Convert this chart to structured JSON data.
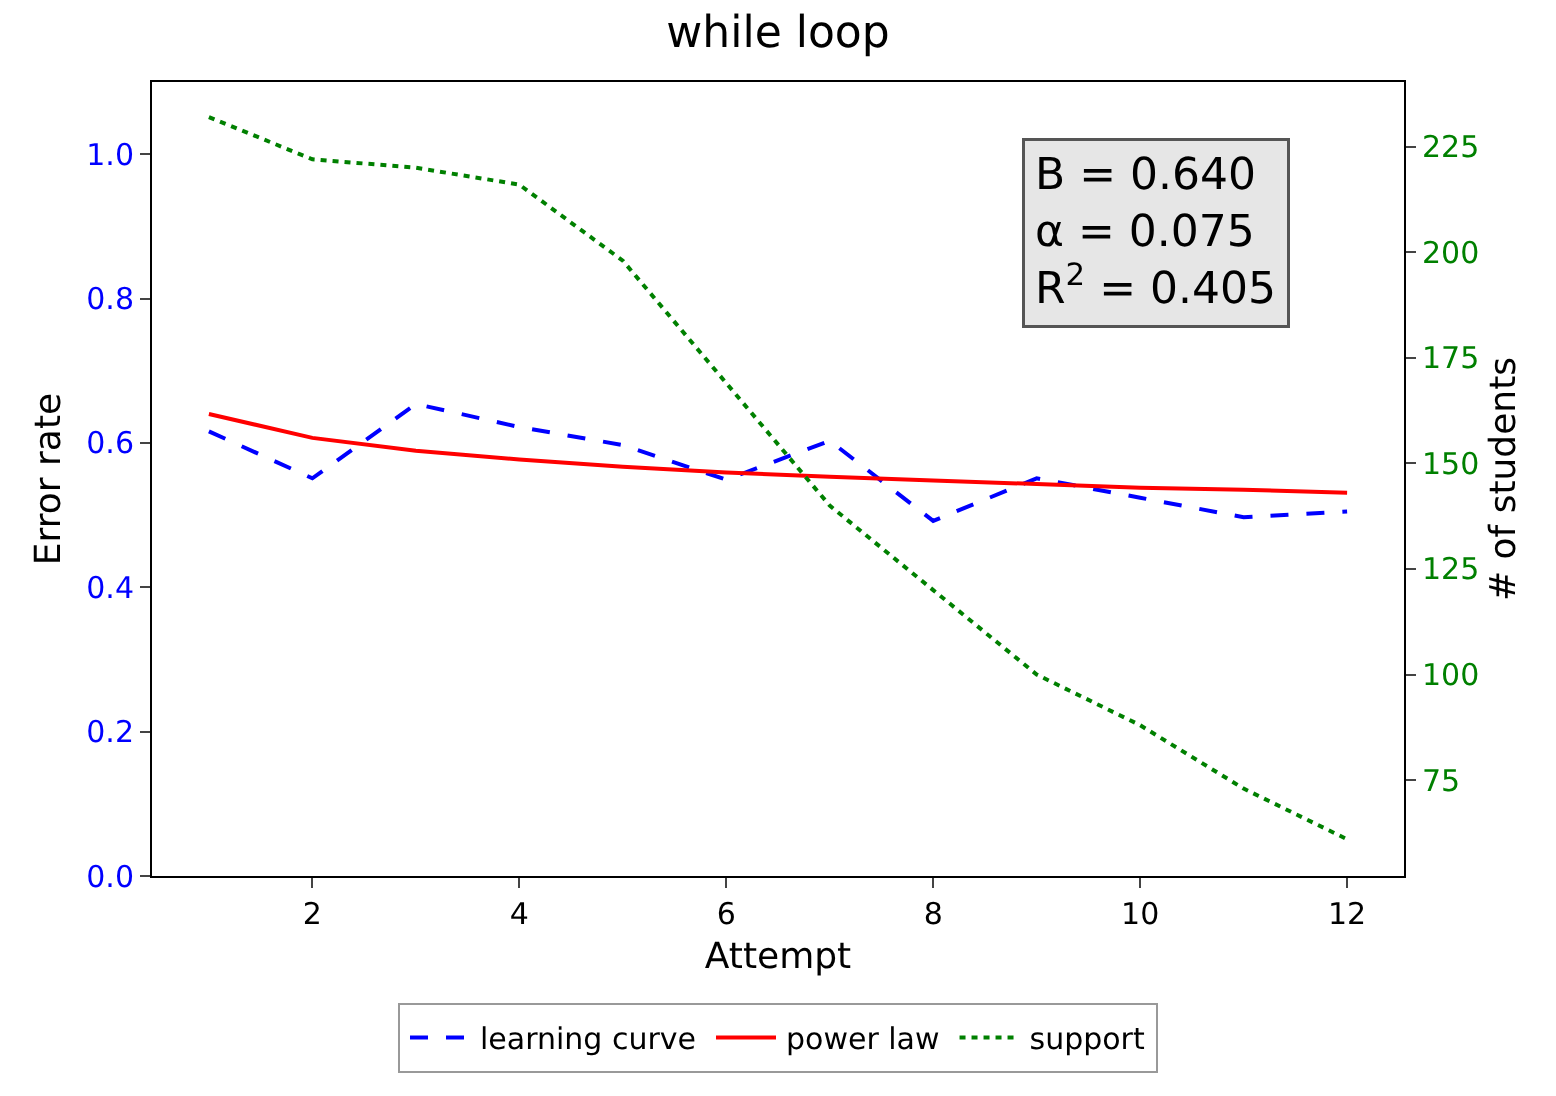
{
  "chart_data": {
    "type": "line",
    "title": "while loop",
    "xlabel": "Attempt",
    "ylabel": "Error rate",
    "y2label": "# of students",
    "x": [
      1,
      2,
      3,
      4,
      5,
      6,
      7,
      8,
      9,
      10,
      11,
      12
    ],
    "series": [
      {
        "name": "learning curve",
        "color": "#0000ff",
        "line_style": "dashed",
        "values": [
          0.616,
          0.551,
          0.654,
          0.622,
          0.597,
          0.549,
          0.603,
          0.492,
          0.551,
          0.524,
          0.497,
          0.505
        ]
      },
      {
        "name": "power law",
        "color": "#ff0000",
        "line_style": "solid",
        "values": [
          0.64,
          0.607,
          0.589,
          0.577,
          0.567,
          0.559,
          0.553,
          0.548,
          0.543,
          0.538,
          0.535,
          0.531
        ]
      },
      {
        "name": "support",
        "color": "#008000",
        "line_style": "dotted",
        "axis": "y2",
        "values": [
          232,
          222,
          220,
          216,
          198,
          169,
          140,
          120,
          100,
          88,
          73,
          61
        ]
      }
    ],
    "xlim": [
      0.45,
      12.55
    ],
    "xticks": [
      2,
      4,
      6,
      8,
      10,
      12
    ],
    "ylim": [
      0,
      1.1
    ],
    "yticks": [
      {
        "value": 0,
        "label": "0.0"
      },
      0.2,
      0.4,
      0.6,
      0.8,
      {
        "value": 1,
        "label": "1.0"
      }
    ],
    "y2lim": [
      52.3,
      240.3
    ],
    "y2ticks": [
      75,
      100,
      125,
      150,
      175,
      200,
      225
    ],
    "annotations": [
      "B = 0.640",
      "α = 0.075",
      "R$^{2}$ = 0.405"
    ],
    "grid": false,
    "legend": "bottom",
    "marker": "none"
  }
}
